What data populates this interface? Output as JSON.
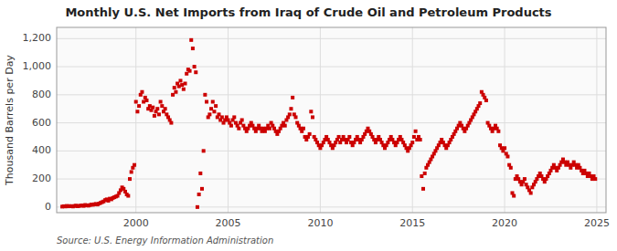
{
  "chart_data": {
    "type": "scatter",
    "title": "Monthly U.S. Net Imports from Iraq of Crude Oil and Petroleum Products",
    "y_label": "Thousand Barrels per Day",
    "annotations": [
      "Source: U.S. Energy Information Administration"
    ],
    "color": "#CC0000",
    "marker": "square",
    "grid": true,
    "xlim": [
      1995.7,
      2025.5
    ],
    "xticks": [
      2000,
      2005,
      2010,
      2015,
      2020,
      2025
    ],
    "ylim": [
      -40,
      1280
    ],
    "yticks": [
      0,
      200,
      400,
      600,
      800,
      {
        "value": 1000,
        "label": "1,000"
      },
      {
        "value": 1200,
        "label": "1,200"
      }
    ],
    "x": [
      1996.0,
      1996.083,
      1996.167,
      1996.25,
      1996.333,
      1996.417,
      1996.5,
      1996.583,
      1996.667,
      1996.75,
      1996.833,
      1996.917,
      1997.0,
      1997.083,
      1997.167,
      1997.25,
      1997.333,
      1997.417,
      1997.5,
      1997.583,
      1997.667,
      1997.75,
      1997.833,
      1997.917,
      1998.0,
      1998.083,
      1998.167,
      1998.25,
      1998.333,
      1998.417,
      1998.5,
      1998.583,
      1998.667,
      1998.75,
      1998.833,
      1998.917,
      1999.0,
      1999.083,
      1999.167,
      1999.25,
      1999.333,
      1999.417,
      1999.5,
      1999.583,
      1999.667,
      1999.75,
      1999.833,
      1999.917,
      2000.0,
      2000.083,
      2000.167,
      2000.25,
      2000.333,
      2000.417,
      2000.5,
      2000.583,
      2000.667,
      2000.75,
      2000.833,
      2000.917,
      2001.0,
      2001.083,
      2001.167,
      2001.25,
      2001.333,
      2001.417,
      2001.5,
      2001.583,
      2001.667,
      2001.75,
      2001.833,
      2001.917,
      2002.0,
      2002.083,
      2002.167,
      2002.25,
      2002.333,
      2002.417,
      2002.5,
      2002.583,
      2002.667,
      2002.75,
      2002.833,
      2002.917,
      2003.0,
      2003.083,
      2003.167,
      2003.25,
      2003.333,
      2003.417,
      2003.5,
      2003.583,
      2003.667,
      2003.75,
      2003.833,
      2003.917,
      2004.0,
      2004.083,
      2004.167,
      2004.25,
      2004.333,
      2004.417,
      2004.5,
      2004.583,
      2004.667,
      2004.75,
      2004.833,
      2004.917,
      2005.0,
      2005.083,
      2005.167,
      2005.25,
      2005.333,
      2005.417,
      2005.5,
      2005.583,
      2005.667,
      2005.75,
      2005.833,
      2005.917,
      2006.0,
      2006.083,
      2006.167,
      2006.25,
      2006.333,
      2006.417,
      2006.5,
      2006.583,
      2006.667,
      2006.75,
      2006.833,
      2006.917,
      2007.0,
      2007.083,
      2007.167,
      2007.25,
      2007.333,
      2007.417,
      2007.5,
      2007.583,
      2007.667,
      2007.75,
      2007.833,
      2007.917,
      2008.0,
      2008.083,
      2008.167,
      2008.25,
      2008.333,
      2008.417,
      2008.5,
      2008.583,
      2008.667,
      2008.75,
      2008.833,
      2008.917,
      2009.0,
      2009.083,
      2009.167,
      2009.25,
      2009.333,
      2009.417,
      2009.5,
      2009.583,
      2009.667,
      2009.75,
      2009.833,
      2009.917,
      2010.0,
      2010.083,
      2010.167,
      2010.25,
      2010.333,
      2010.417,
      2010.5,
      2010.583,
      2010.667,
      2010.75,
      2010.833,
      2010.917,
      2011.0,
      2011.083,
      2011.167,
      2011.25,
      2011.333,
      2011.417,
      2011.5,
      2011.583,
      2011.667,
      2011.75,
      2011.833,
      2011.917,
      2012.0,
      2012.083,
      2012.167,
      2012.25,
      2012.333,
      2012.417,
      2012.5,
      2012.583,
      2012.667,
      2012.75,
      2012.833,
      2012.917,
      2013.0,
      2013.083,
      2013.167,
      2013.25,
      2013.333,
      2013.417,
      2013.5,
      2013.583,
      2013.667,
      2013.75,
      2013.833,
      2013.917,
      2014.0,
      2014.083,
      2014.167,
      2014.25,
      2014.333,
      2014.417,
      2014.5,
      2014.583,
      2014.667,
      2014.75,
      2014.833,
      2014.917,
      2015.0,
      2015.083,
      2015.167,
      2015.25,
      2015.333,
      2015.417,
      2015.5,
      2015.583,
      2015.667,
      2015.75,
      2015.833,
      2015.917,
      2016.0,
      2016.083,
      2016.167,
      2016.25,
      2016.333,
      2016.417,
      2016.5,
      2016.583,
      2016.667,
      2016.75,
      2016.833,
      2016.917,
      2017.0,
      2017.083,
      2017.167,
      2017.25,
      2017.333,
      2017.417,
      2017.5,
      2017.583,
      2017.667,
      2017.75,
      2017.833,
      2017.917,
      2018.0,
      2018.083,
      2018.167,
      2018.25,
      2018.333,
      2018.417,
      2018.5,
      2018.583,
      2018.667,
      2018.75,
      2018.833,
      2018.917,
      2019.0,
      2019.083,
      2019.167,
      2019.25,
      2019.333,
      2019.417,
      2019.5,
      2019.583,
      2019.667,
      2019.75,
      2019.833,
      2019.917,
      2020.0,
      2020.083,
      2020.167,
      2020.25,
      2020.333,
      2020.417,
      2020.5,
      2020.583,
      2020.667,
      2020.75,
      2020.833,
      2020.917,
      2021.0,
      2021.083,
      2021.167,
      2021.25,
      2021.333,
      2021.417,
      2021.5,
      2021.583,
      2021.667,
      2021.75,
      2021.833,
      2021.917,
      2022.0,
      2022.083,
      2022.167,
      2022.25,
      2022.333,
      2022.417,
      2022.5,
      2022.583,
      2022.667,
      2022.75,
      2022.833,
      2022.917,
      2023.0,
      2023.083,
      2023.167,
      2023.25,
      2023.333,
      2023.417,
      2023.5,
      2023.583,
      2023.667,
      2023.75,
      2023.833,
      2023.917,
      2024.0,
      2024.083,
      2024.167,
      2024.25,
      2024.333,
      2024.417,
      2024.5,
      2024.583,
      2024.667,
      2024.75,
      2024.833,
      2024.917
    ],
    "values": [
      3,
      6,
      4,
      8,
      5,
      7,
      6,
      4,
      8,
      10,
      6,
      8,
      10,
      12,
      8,
      15,
      12,
      10,
      14,
      18,
      16,
      20,
      22,
      18,
      25,
      30,
      35,
      40,
      50,
      55,
      45,
      60,
      55,
      65,
      70,
      75,
      80,
      100,
      120,
      140,
      130,
      110,
      90,
      80,
      200,
      250,
      280,
      300,
      750,
      680,
      720,
      800,
      820,
      750,
      780,
      760,
      700,
      720,
      690,
      710,
      650,
      680,
      700,
      660,
      750,
      720,
      680,
      700,
      660,
      640,
      620,
      600,
      800,
      850,
      820,
      880,
      860,
      900,
      870,
      840,
      880,
      950,
      980,
      970,
      1190,
      1130,
      1000,
      960,
      0,
      90,
      240,
      130,
      400,
      800,
      750,
      640,
      660,
      700,
      750,
      680,
      720,
      640,
      660,
      620,
      640,
      600,
      620,
      640,
      620,
      600,
      580,
      620,
      640,
      600,
      580,
      560,
      600,
      620,
      580,
      560,
      540,
      560,
      580,
      600,
      580,
      560,
      540,
      560,
      580,
      560,
      540,
      560,
      540,
      560,
      580,
      560,
      600,
      580,
      560,
      540,
      520,
      540,
      560,
      580,
      600,
      580,
      620,
      640,
      660,
      700,
      780,
      660,
      640,
      600,
      580,
      560,
      540,
      560,
      500,
      480,
      500,
      520,
      680,
      640,
      500,
      480,
      460,
      440,
      420,
      440,
      460,
      480,
      500,
      480,
      460,
      440,
      420,
      440,
      460,
      480,
      500,
      460,
      480,
      500,
      480,
      460,
      480,
      500,
      460,
      440,
      460,
      480,
      500,
      480,
      460,
      480,
      500,
      520,
      540,
      560,
      540,
      520,
      500,
      480,
      460,
      480,
      500,
      480,
      460,
      440,
      420,
      440,
      460,
      480,
      500,
      480,
      460,
      440,
      460,
      480,
      500,
      480,
      460,
      440,
      420,
      400,
      420,
      440,
      460,
      500,
      540,
      480,
      500,
      480,
      220,
      130,
      240,
      280,
      300,
      320,
      340,
      360,
      380,
      400,
      420,
      440,
      460,
      480,
      460,
      440,
      420,
      440,
      460,
      480,
      500,
      520,
      540,
      560,
      580,
      600,
      580,
      560,
      540,
      560,
      580,
      600,
      620,
      640,
      660,
      680,
      700,
      720,
      740,
      820,
      800,
      780,
      760,
      600,
      580,
      560,
      540,
      560,
      580,
      560,
      540,
      440,
      420,
      400,
      420,
      380,
      360,
      300,
      280,
      100,
      80,
      200,
      220,
      200,
      180,
      160,
      180,
      200,
      160,
      140,
      120,
      100,
      140,
      160,
      180,
      200,
      220,
      240,
      220,
      200,
      180,
      200,
      220,
      240,
      260,
      280,
      300,
      280,
      260,
      280,
      300,
      320,
      340,
      320,
      300,
      320,
      300,
      280,
      300,
      320,
      300,
      280,
      300,
      280,
      260,
      240,
      260,
      240,
      220,
      240,
      220,
      200,
      220,
      200
    ]
  }
}
